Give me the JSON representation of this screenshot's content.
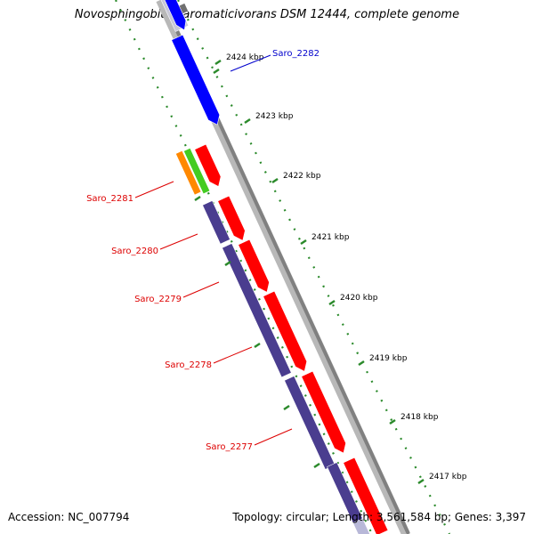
{
  "title": "Novosphingobium aromaticivorans DSM 12444, complete genome",
  "footer": {
    "accession": "Accession: NC_007794",
    "summary": "Topology: circular; Length: 3,561,584 bp; Genes: 3,397"
  },
  "scale_ticks": [
    "2424 kbp",
    "2423 kbp",
    "2422 kbp",
    "2421 kbp",
    "2420 kbp",
    "2419 kbp",
    "2418 kbp",
    "2417 kbp"
  ],
  "gene_labels": [
    {
      "name": "Saro_2282",
      "color": "#0000cc"
    },
    {
      "name": "Saro_2281",
      "color": "#dd0000"
    },
    {
      "name": "Saro_2280",
      "color": "#dd0000"
    },
    {
      "name": "Saro_2279",
      "color": "#dd0000"
    },
    {
      "name": "Saro_2278",
      "color": "#dd0000"
    },
    {
      "name": "Saro_2277",
      "color": "#dd0000"
    }
  ],
  "colors": {
    "backbone": "#808080",
    "forward_gene": "#ff0000",
    "forward_gene_upstream": "#0000ff",
    "orf_purple": "#4a3d8f",
    "orange": "#ff8800",
    "green": "#44cc22",
    "tick_green": "#2b8a2b"
  }
}
